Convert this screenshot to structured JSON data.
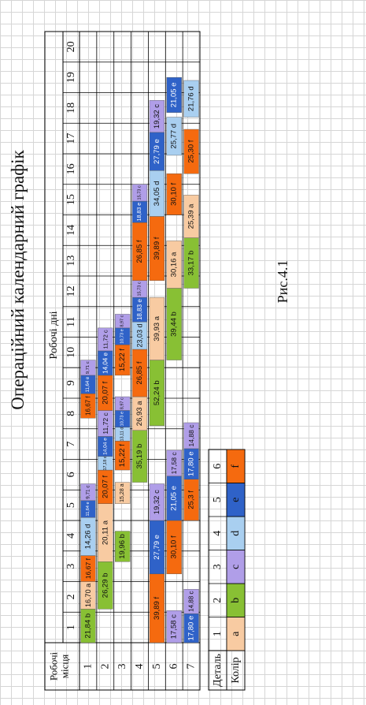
{
  "title": "Операційний календарний графік",
  "caption": "Рис.4.1",
  "header": {
    "workplaces": "Робочі місця",
    "days": "Робочі дні"
  },
  "day_numbers": [
    "1",
    "2",
    "3",
    "4",
    "5",
    "6",
    "7",
    "8",
    "9",
    "10",
    "11",
    "12",
    "13",
    "14",
    "15",
    "16",
    "17",
    "18",
    "19",
    "20"
  ],
  "workplace_numbers": [
    "1",
    "2",
    "3",
    "4",
    "5",
    "6",
    "7"
  ],
  "colors": {
    "a": "#f8cba2",
    "b": "#88c034",
    "c": "#b09ee8",
    "d": "#a9cff0",
    "e": "#2f62c8",
    "f": "#f56a0f"
  },
  "chart_data": {
    "type": "gantt",
    "rows": [
      {
        "workplace": "1",
        "tasks": [
          {
            "label": "21,84 b",
            "color": "b",
            "start": 0,
            "end": 1.1
          },
          {
            "label": "16,70 a",
            "color": "a",
            "start": 1.1,
            "end": 2
          },
          {
            "label": "16,67 f",
            "color": "f",
            "start": 2,
            "end": 2.85
          },
          {
            "label": "14,26 d",
            "color": "d",
            "start": 2.85,
            "end": 4.1
          },
          {
            "label": "11,64 e",
            "color": "e",
            "start": 4.1,
            "end": 4.65
          },
          {
            "label": "9,71 c",
            "color": "c",
            "start": 4.65,
            "end": 5.2
          },
          {
            "label": "16,67 f",
            "color": "f",
            "start": 7.35,
            "end": 8.15
          },
          {
            "label": "11,64 e",
            "color": "e",
            "start": 8.15,
            "end": 8.75
          },
          {
            "label": "9,71 c",
            "color": "c",
            "start": 8.75,
            "end": 9.25
          }
        ]
      },
      {
        "workplace": "2",
        "tasks": [
          {
            "label": "26,29 b",
            "color": "b",
            "start": 1.1,
            "end": 2.65
          },
          {
            "label": "20,11 a",
            "color": "a",
            "start": 2.65,
            "end": 4.55
          },
          {
            "label": "20,07 f",
            "color": "f",
            "start": 4.55,
            "end": 5.65
          },
          {
            "label": "17,18 d",
            "color": "d",
            "start": 5.65,
            "end": 6.1
          },
          {
            "label": "14,04 e",
            "color": "e",
            "start": 6.1,
            "end": 6.75
          },
          {
            "label": "11,72 c",
            "color": "c",
            "start": 6.75,
            "end": 7.6
          },
          {
            "label": "20,07 f",
            "color": "f",
            "start": 7.6,
            "end": 8.75
          },
          {
            "label": "14,04 e",
            "color": "e",
            "start": 8.75,
            "end": 9.55
          },
          {
            "label": "11,72 c",
            "color": "c",
            "start": 9.55,
            "end": 10.3
          }
        ]
      },
      {
        "workplace": "3",
        "tasks": [
          {
            "label": "19,96 b",
            "color": "b",
            "start": 2.65,
            "end": 3.65
          },
          {
            "label": "15,28 a",
            "color": "a",
            "start": 4.55,
            "end": 5.25
          },
          {
            "label": "15,22 f",
            "color": "f",
            "start": 5.65,
            "end": 6.6
          },
          {
            "label": "13,11 d",
            "color": "d",
            "start": 6.6,
            "end": 7.05
          },
          {
            "label": "10,73 e",
            "color": "e",
            "start": 7.05,
            "end": 7.6
          },
          {
            "label": "8,97 c",
            "color": "c",
            "start": 7.6,
            "end": 8.05
          },
          {
            "label": "15,22 f",
            "color": "f",
            "start": 8.75,
            "end": 9.75
          },
          {
            "label": "10,73 e",
            "color": "e",
            "start": 9.75,
            "end": 10.3
          },
          {
            "label": "8,97 c",
            "color": "c",
            "start": 10.3,
            "end": 10.75
          }
        ]
      },
      {
        "workplace": "4",
        "tasks": [
          {
            "label": "35,19 b",
            "color": "b",
            "start": 5.25,
            "end": 6.95
          },
          {
            "label": "26,93 a",
            "color": "a",
            "start": 6.95,
            "end": 8.05
          },
          {
            "label": "26,85 f",
            "color": "f",
            "start": 8.05,
            "end": 9.6
          },
          {
            "label": "23,03 d",
            "color": "d",
            "start": 9.6,
            "end": 10.5
          },
          {
            "label": "18,83 e",
            "color": "e",
            "start": 10.5,
            "end": 11.3
          },
          {
            "label": "15,73 c",
            "color": "c",
            "start": 11.3,
            "end": 11.85
          },
          {
            "label": "26,85 f",
            "color": "f",
            "start": 11.85,
            "end": 13.75
          },
          {
            "label": "18,83 e",
            "color": "e",
            "start": 13.75,
            "end": 14.45
          },
          {
            "label": "15,73 c",
            "color": "c",
            "start": 14.45,
            "end": 15.0
          }
        ]
      },
      {
        "workplace": "5",
        "tasks": [
          {
            "label": "39,89 f",
            "color": "f",
            "start": 0,
            "end": 2.25
          },
          {
            "label": "27,79 e",
            "color": "e",
            "start": 2.25,
            "end": 4.0
          },
          {
            "label": "19,32 c",
            "color": "c",
            "start": 4.0,
            "end": 5.2
          },
          {
            "label": "52,24 b",
            "color": "b",
            "start": 7.1,
            "end": 9.25
          },
          {
            "label": "39,93 a",
            "color": "a",
            "start": 9.25,
            "end": 11.3
          },
          {
            "label": "39,89 f",
            "color": "f",
            "start": 11.85,
            "end": 13.95
          },
          {
            "label": "34,05 d",
            "color": "d",
            "start": 13.95,
            "end": 15.45
          },
          {
            "label": "27,79 e",
            "color": "e",
            "start": 15.45,
            "end": 16.7
          },
          {
            "label": "19,32 c",
            "color": "c",
            "start": 16.7,
            "end": 17.75
          }
        ]
      },
      {
        "workplace": "6",
        "tasks": [
          {
            "label": "17,58 c",
            "color": "c",
            "start": 0,
            "end": 1.05
          },
          {
            "label": "30,10 f",
            "color": "f",
            "start": 2.25,
            "end": 4.0
          },
          {
            "label": "21,05 e",
            "color": "e",
            "start": 4.0,
            "end": 5.45
          },
          {
            "label": "17,58 c",
            "color": "c",
            "start": 5.45,
            "end": 6.3
          },
          {
            "label": "39,44 b",
            "color": "b",
            "start": 9.25,
            "end": 11.6
          },
          {
            "label": "30,16 a",
            "color": "a",
            "start": 11.6,
            "end": 13.15
          },
          {
            "label": "30,10 f",
            "color": "f",
            "start": 14.0,
            "end": 15.35
          },
          {
            "label": "25,77 d",
            "color": "d",
            "start": 15.95,
            "end": 17.2
          },
          {
            "label": "21,05 e",
            "color": "e",
            "start": 17.35,
            "end": 18.5
          }
        ]
      },
      {
        "workplace": "7",
        "tasks": [
          {
            "label": "17,80 e",
            "color": "e",
            "start": 0,
            "end": 0.95
          },
          {
            "label": "14,88 c",
            "color": "c",
            "start": 0.95,
            "end": 1.75
          },
          {
            "label": "25,3 f",
            "color": "f",
            "start": 4.0,
            "end": 5.35
          },
          {
            "label": "17,80 e",
            "color": "e",
            "start": 5.35,
            "end": 6.35
          },
          {
            "label": "14,88 c",
            "color": "c",
            "start": 6.35,
            "end": 7.2
          },
          {
            "label": "33,17 b",
            "color": "b",
            "start": 11.6,
            "end": 13.25
          },
          {
            "label": "25,39 a",
            "color": "a",
            "start": 13.25,
            "end": 14.65
          },
          {
            "label": "25,30 f",
            "color": "f",
            "start": 15.35,
            "end": 16.8
          },
          {
            "label": "21,76 d",
            "color": "d",
            "start": 17.2,
            "end": 18.4
          }
        ]
      }
    ]
  },
  "legend": {
    "detail_label": "Деталь",
    "color_label": "Колір",
    "details": [
      "1",
      "2",
      "3",
      "4",
      "5",
      "6"
    ],
    "letters": [
      "a",
      "b",
      "c",
      "d",
      "e",
      "f"
    ]
  }
}
